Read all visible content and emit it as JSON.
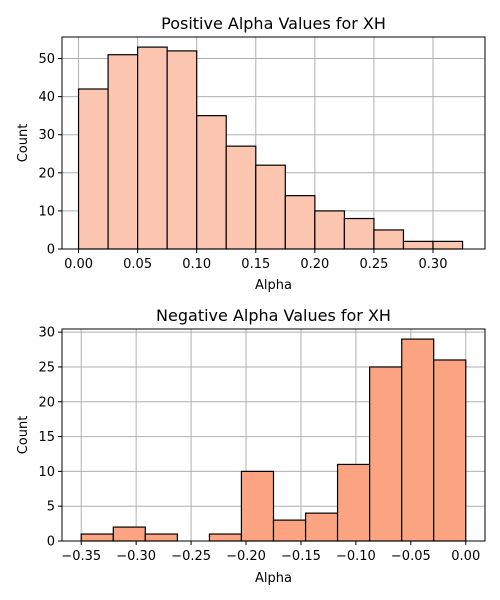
{
  "chart_data": [
    {
      "type": "bar",
      "title": "Positive Alpha Values for XH",
      "xlabel": "Alpha",
      "ylabel": "Count",
      "xlim": [
        -0.014,
        0.344
      ],
      "ylim": [
        0,
        55.65
      ],
      "xticks": [
        0.0,
        0.05,
        0.1,
        0.15,
        0.2,
        0.25,
        0.3
      ],
      "xtick_labels": [
        "0.00",
        "0.05",
        "0.10",
        "0.15",
        "0.20",
        "0.25",
        "0.30"
      ],
      "yticks": [
        0,
        10,
        20,
        30,
        40,
        50
      ],
      "ytick_labels": [
        "0",
        "10",
        "20",
        "30",
        "40",
        "50"
      ],
      "grid": true,
      "color": "#fcc5b0",
      "bins": [
        {
          "x0": 0.0,
          "x1": 0.025,
          "count": 42
        },
        {
          "x0": 0.025,
          "x1": 0.05,
          "count": 51
        },
        {
          "x0": 0.05,
          "x1": 0.075,
          "count": 53
        },
        {
          "x0": 0.075,
          "x1": 0.1,
          "count": 52
        },
        {
          "x0": 0.1,
          "x1": 0.125,
          "count": 35
        },
        {
          "x0": 0.125,
          "x1": 0.15,
          "count": 27
        },
        {
          "x0": 0.15,
          "x1": 0.175,
          "count": 22
        },
        {
          "x0": 0.175,
          "x1": 0.2,
          "count": 14
        },
        {
          "x0": 0.2,
          "x1": 0.225,
          "count": 10
        },
        {
          "x0": 0.225,
          "x1": 0.25,
          "count": 8
        },
        {
          "x0": 0.25,
          "x1": 0.275,
          "count": 5
        },
        {
          "x0": 0.275,
          "x1": 0.3,
          "count": 2
        },
        {
          "x0": 0.3,
          "x1": 0.325,
          "count": 2
        }
      ]
    },
    {
      "type": "bar",
      "title": "Negative Alpha Values for XH",
      "xlabel": "Alpha",
      "ylabel": "Count",
      "xlim": [
        -0.3675,
        0.0175
      ],
      "ylim": [
        0,
        30.45
      ],
      "xticks": [
        -0.35,
        -0.3,
        -0.25,
        -0.2,
        -0.15,
        -0.1,
        -0.05,
        0.0
      ],
      "xtick_labels": [
        "−0.35",
        "−0.30",
        "−0.25",
        "−0.20",
        "−0.15",
        "−0.10",
        "−0.05",
        "0.00"
      ],
      "yticks": [
        0,
        5,
        10,
        15,
        20,
        25,
        30
      ],
      "ytick_labels": [
        "0",
        "5",
        "10",
        "15",
        "20",
        "25",
        "30"
      ],
      "grid": true,
      "color": "#fca482",
      "bins": [
        {
          "x0": -0.35,
          "x1": -0.3208,
          "count": 1
        },
        {
          "x0": -0.3208,
          "x1": -0.2917,
          "count": 2
        },
        {
          "x0": -0.2917,
          "x1": -0.2625,
          "count": 1
        },
        {
          "x0": -0.2625,
          "x1": -0.2333,
          "count": 0
        },
        {
          "x0": -0.2333,
          "x1": -0.2042,
          "count": 1
        },
        {
          "x0": -0.2042,
          "x1": -0.175,
          "count": 10
        },
        {
          "x0": -0.175,
          "x1": -0.1458,
          "count": 3
        },
        {
          "x0": -0.1458,
          "x1": -0.1167,
          "count": 4
        },
        {
          "x0": -0.1167,
          "x1": -0.0875,
          "count": 11
        },
        {
          "x0": -0.0875,
          "x1": -0.0583,
          "count": 25
        },
        {
          "x0": -0.0583,
          "x1": -0.0292,
          "count": 29
        },
        {
          "x0": -0.0292,
          "x1": 0.0,
          "count": 26
        }
      ]
    }
  ]
}
